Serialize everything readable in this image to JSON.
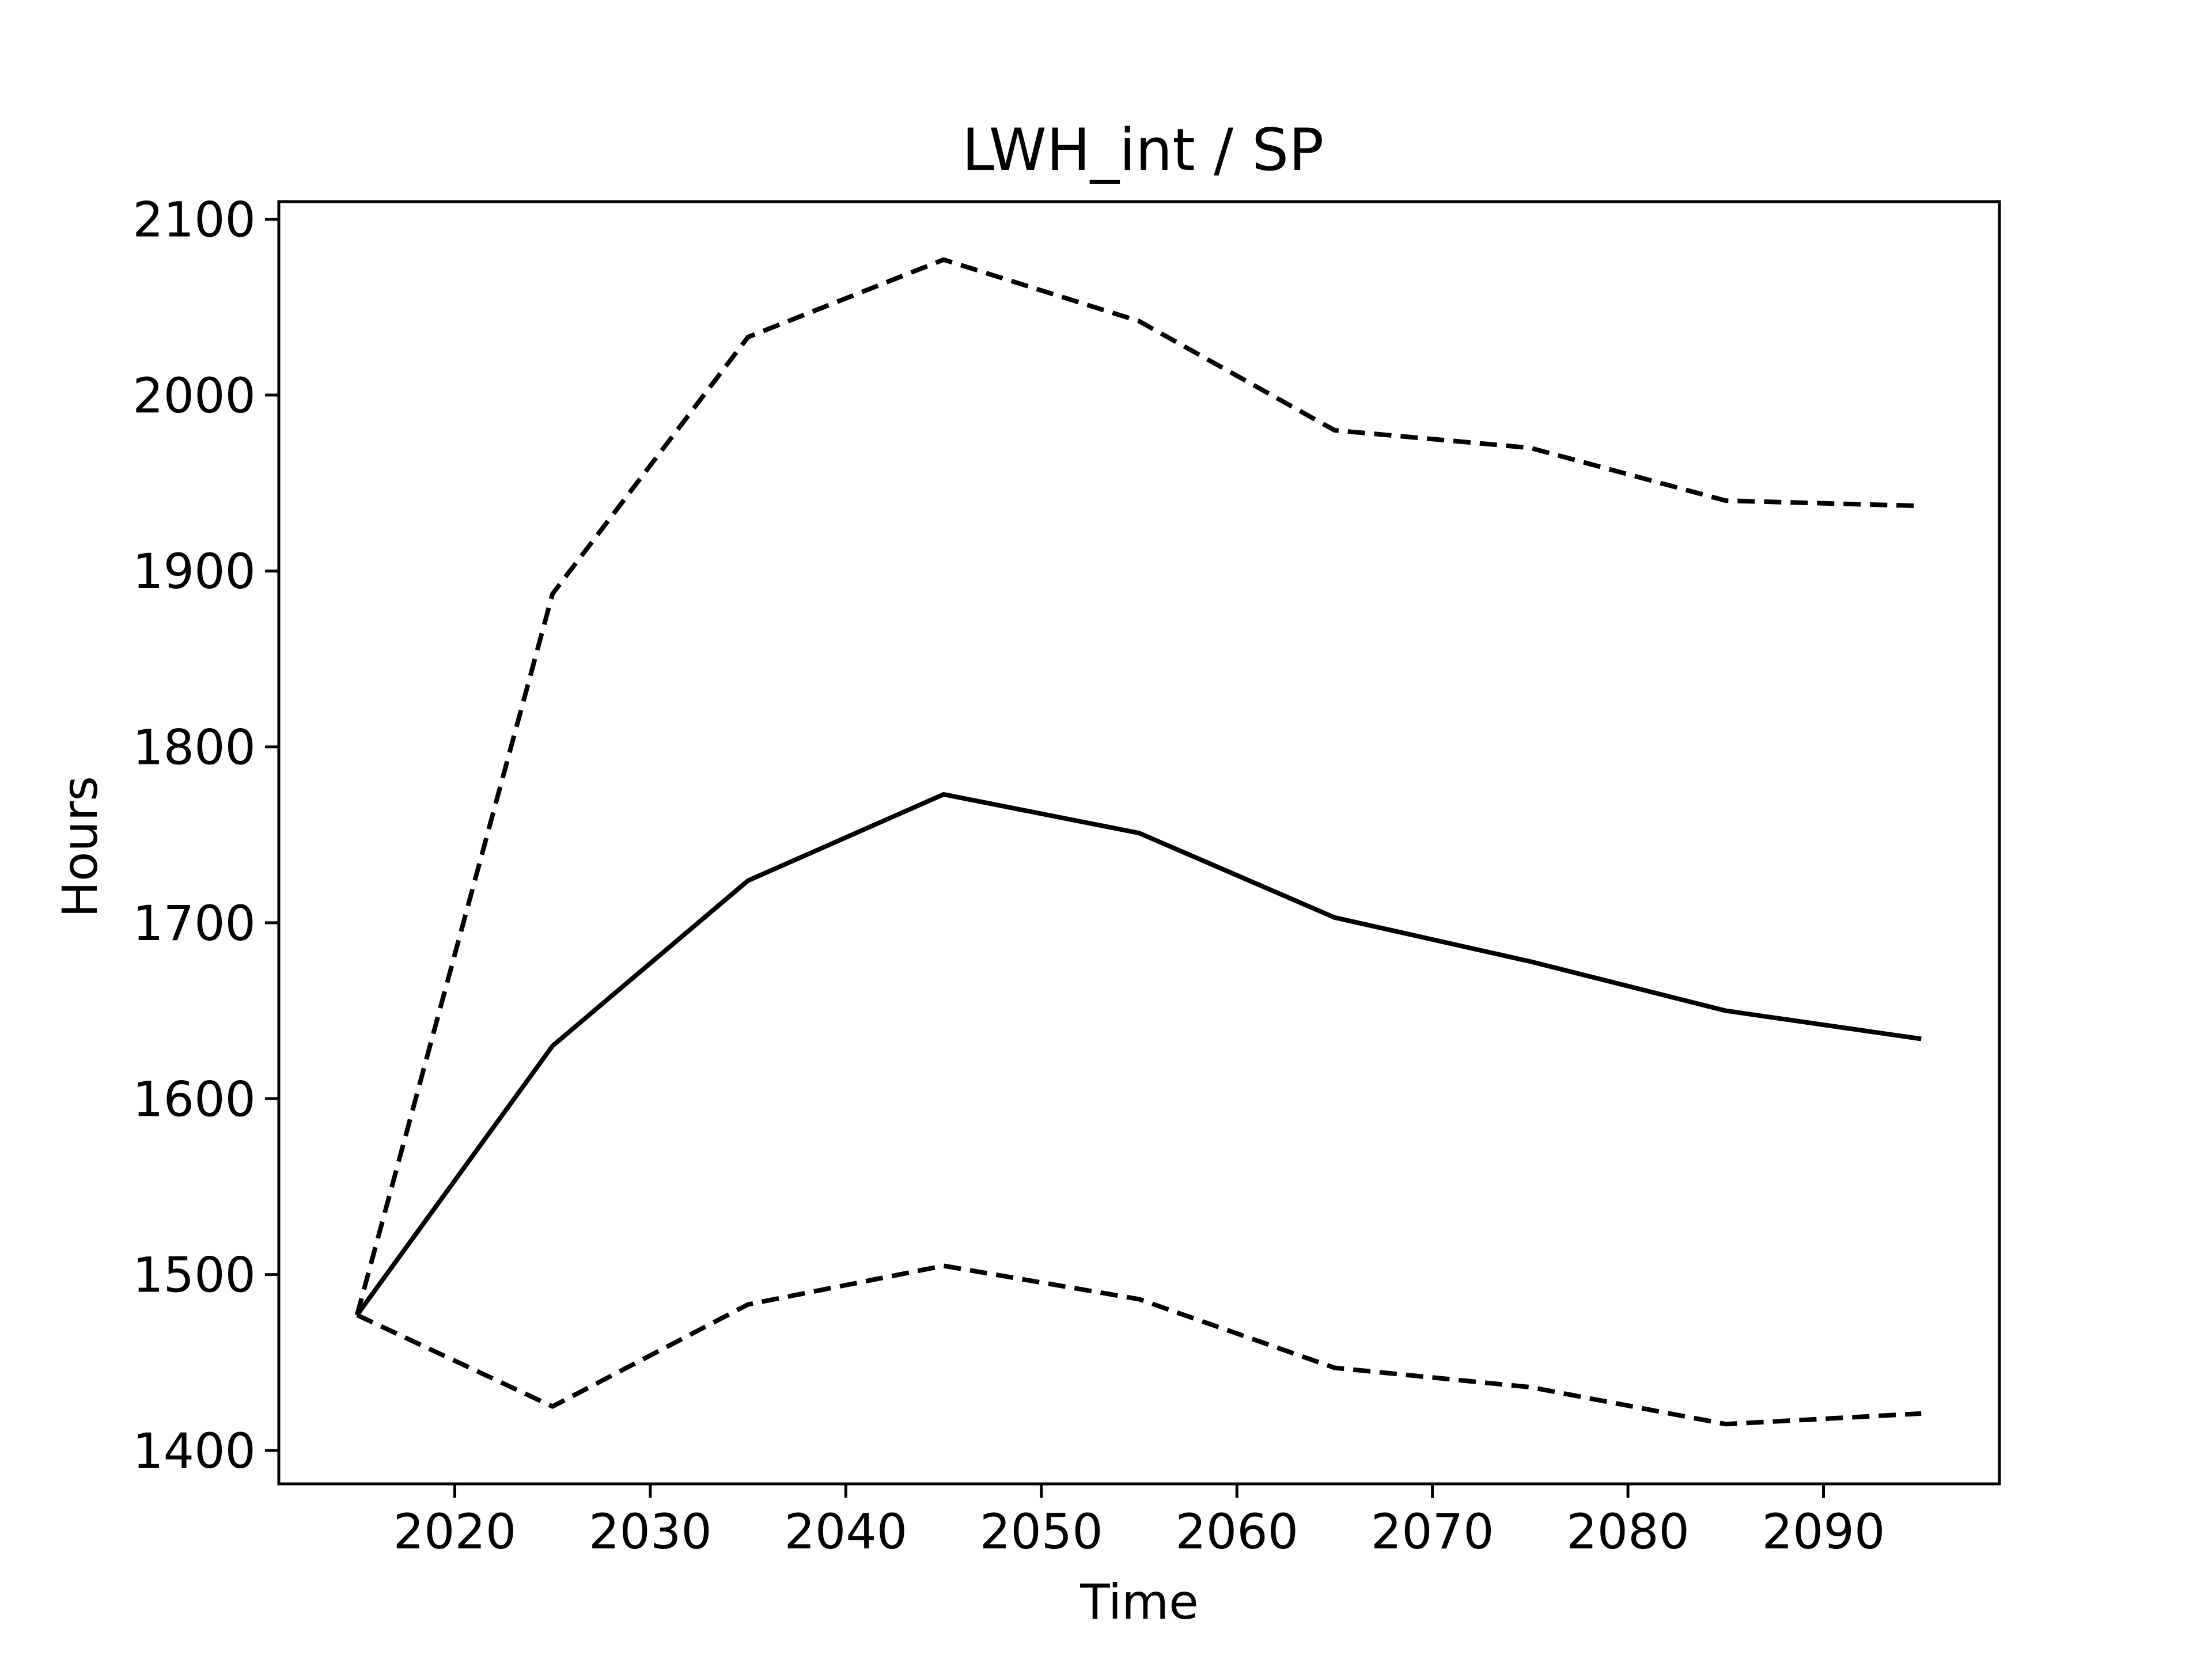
{
  "chart_data": {
    "type": "line",
    "title": "LWH_int / SP",
    "xlabel": "Time",
    "ylabel": "Hours",
    "xlim": [
      2011,
      2099
    ],
    "ylim": [
      1381,
      2110
    ],
    "x_ticks": [
      2020,
      2030,
      2040,
      2050,
      2060,
      2070,
      2080,
      2090
    ],
    "y_ticks": [
      1400,
      1500,
      1600,
      1700,
      1800,
      1900,
      2000,
      2100
    ],
    "grid": false,
    "x": [
      2015,
      2025,
      2035,
      2045,
      2055,
      2065,
      2075,
      2085,
      2095
    ],
    "series": [
      {
        "style": "solid",
        "color": "#000000",
        "values": [
          1477,
          1630,
          1724,
          1773,
          1751,
          1703,
          1678,
          1650,
          1634
        ]
      },
      {
        "style": "dashed",
        "color": "#000000",
        "values": [
          1477,
          1887,
          2033,
          2077,
          2042,
          1980,
          1970,
          1940,
          1937
        ]
      },
      {
        "style": "dashed",
        "color": "#000000",
        "values": [
          1477,
          1425,
          1483,
          1505,
          1486,
          1447,
          1436,
          1415,
          1421
        ]
      }
    ]
  }
}
